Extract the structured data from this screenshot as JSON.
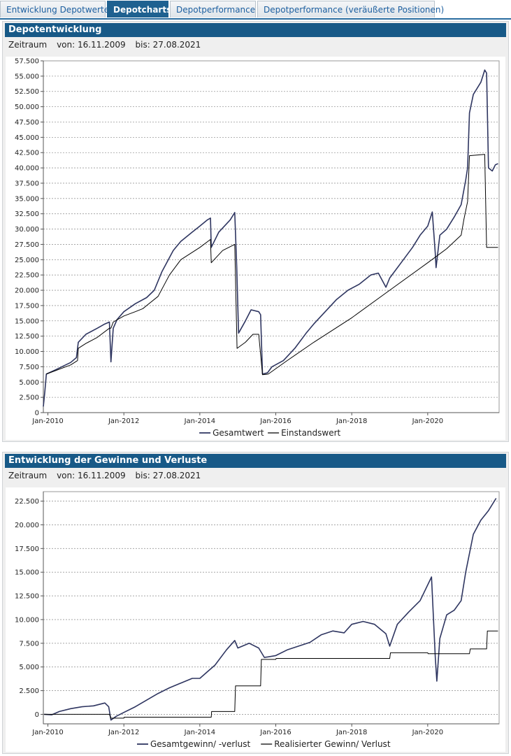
{
  "tabs": [
    {
      "label": "Entwicklung Depotwerte",
      "active": false
    },
    {
      "label": "Depotcharts",
      "active": true
    },
    {
      "label": "Depotperformance",
      "active": false
    },
    {
      "label": "Depotperformance (veräußerte Positionen)",
      "active": false
    }
  ],
  "panels": [
    {
      "title": "Depotentwicklung",
      "range_label": "Zeitraum",
      "from_label": "von:",
      "from": "16.11.2009",
      "to_label": "bis:",
      "to": "27.08.2021"
    },
    {
      "title": "Entwicklung der Gewinne und Verluste",
      "range_label": "Zeitraum",
      "from_label": "von:",
      "from": "16.11.2009",
      "to_label": "bis:",
      "to": "27.08.2021"
    }
  ],
  "colors": {
    "accent": "#175987",
    "series_main": "#2e3560",
    "series_second": "#000000"
  },
  "chart_data": [
    {
      "type": "line",
      "xlim": [
        2009.88,
        2021.88
      ],
      "ylim": [
        0,
        57500
      ],
      "yticks": [
        0,
        2500,
        5000,
        7500,
        10000,
        12500,
        15000,
        17500,
        20000,
        22500,
        25000,
        27500,
        30000,
        32500,
        35000,
        37500,
        40000,
        42500,
        45000,
        47500,
        50000,
        52500,
        55000,
        57500
      ],
      "ytick_labels": [
        "0",
        "2.500",
        "5.000",
        "7.500",
        "10.000",
        "12.500",
        "15.000",
        "17.500",
        "20.000",
        "22.500",
        "25.000",
        "27.500",
        "30.000",
        "32.500",
        "35.000",
        "37.500",
        "40.000",
        "42.500",
        "45.000",
        "47.500",
        "50.000",
        "52.500",
        "55.000",
        "57.500"
      ],
      "xticks": [
        2010,
        2012,
        2014,
        2016,
        2018,
        2020
      ],
      "xtick_labels": [
        "Jan-2010",
        "Jan-2012",
        "Jan-2014",
        "Jan-2016",
        "Jan-2018",
        "Jan-2020"
      ],
      "grid": true,
      "legend_position": "bottom-center",
      "series": [
        {
          "name": "Gesamtwert",
          "color": "#2e3560",
          "width": 1.6,
          "points": [
            [
              2009.88,
              1000
            ],
            [
              2009.92,
              3500
            ],
            [
              2009.96,
              6300
            ],
            [
              2010.2,
              7000
            ],
            [
              2010.6,
              8200
            ],
            [
              2010.75,
              9000
            ],
            [
              2010.8,
              11500
            ],
            [
              2011.0,
              12800
            ],
            [
              2011.3,
              13800
            ],
            [
              2011.5,
              14500
            ],
            [
              2011.62,
              14800
            ],
            [
              2011.66,
              8300
            ],
            [
              2011.72,
              13800
            ],
            [
              2011.82,
              15200
            ],
            [
              2012.0,
              16500
            ],
            [
              2012.3,
              17800
            ],
            [
              2012.6,
              18800
            ],
            [
              2012.8,
              20000
            ],
            [
              2013.0,
              23000
            ],
            [
              2013.3,
              26500
            ],
            [
              2013.5,
              28000
            ],
            [
              2013.8,
              29500
            ],
            [
              2014.0,
              30500
            ],
            [
              2014.2,
              31500
            ],
            [
              2014.28,
              31800
            ],
            [
              2014.3,
              27000
            ],
            [
              2014.5,
              29500
            ],
            [
              2014.8,
              31500
            ],
            [
              2014.92,
              32700
            ],
            [
              2014.97,
              24000
            ],
            [
              2015.02,
              13000
            ],
            [
              2015.2,
              15000
            ],
            [
              2015.35,
              16800
            ],
            [
              2015.55,
              16500
            ],
            [
              2015.6,
              16000
            ],
            [
              2015.65,
              6300
            ],
            [
              2015.78,
              6500
            ],
            [
              2015.9,
              7500
            ],
            [
              2016.2,
              8500
            ],
            [
              2016.5,
              10500
            ],
            [
              2016.8,
              13000
            ],
            [
              2017.0,
              14500
            ],
            [
              2017.3,
              16500
            ],
            [
              2017.6,
              18500
            ],
            [
              2017.9,
              20000
            ],
            [
              2018.2,
              21000
            ],
            [
              2018.5,
              22500
            ],
            [
              2018.7,
              22800
            ],
            [
              2018.9,
              20500
            ],
            [
              2019.0,
              22000
            ],
            [
              2019.3,
              24500
            ],
            [
              2019.6,
              27000
            ],
            [
              2019.8,
              29000
            ],
            [
              2020.0,
              30500
            ],
            [
              2020.12,
              32800
            ],
            [
              2020.2,
              26000
            ],
            [
              2020.22,
              23700
            ],
            [
              2020.32,
              29000
            ],
            [
              2020.5,
              30000
            ],
            [
              2020.7,
              32000
            ],
            [
              2020.88,
              34000
            ],
            [
              2021.0,
              38000
            ],
            [
              2021.05,
              40000
            ],
            [
              2021.1,
              49000
            ],
            [
              2021.2,
              52000
            ],
            [
              2021.4,
              54000
            ],
            [
              2021.5,
              56000
            ],
            [
              2021.55,
              55500
            ],
            [
              2021.6,
              40000
            ],
            [
              2021.7,
              39500
            ],
            [
              2021.78,
              40500
            ],
            [
              2021.85,
              40700
            ]
          ]
        },
        {
          "name": "Einstandswert",
          "color": "#000000",
          "width": 1.0,
          "points": [
            [
              2009.96,
              6300
            ],
            [
              2010.6,
              7800
            ],
            [
              2010.78,
              8500
            ],
            [
              2010.8,
              10500
            ],
            [
              2011.0,
              11300
            ],
            [
              2011.3,
              12300
            ],
            [
              2011.62,
              13800
            ],
            [
              2011.66,
              13800
            ],
            [
              2011.72,
              14800
            ],
            [
              2012.0,
              15800
            ],
            [
              2012.3,
              16500
            ],
            [
              2012.5,
              17000
            ],
            [
              2012.6,
              17500
            ],
            [
              2012.9,
              19000
            ],
            [
              2013.2,
              22500
            ],
            [
              2013.5,
              25000
            ],
            [
              2014.0,
              27000
            ],
            [
              2014.28,
              28300
            ],
            [
              2014.3,
              24500
            ],
            [
              2014.6,
              26500
            ],
            [
              2014.92,
              27500
            ],
            [
              2014.98,
              10500
            ],
            [
              2015.2,
              11500
            ],
            [
              2015.4,
              12800
            ],
            [
              2015.55,
              12800
            ],
            [
              2015.65,
              6200
            ],
            [
              2015.8,
              6300
            ],
            [
              2016.3,
              8500
            ],
            [
              2017.0,
              11500
            ],
            [
              2018.0,
              15500
            ],
            [
              2019.0,
              20000
            ],
            [
              2020.0,
              24500
            ],
            [
              2020.5,
              26800
            ],
            [
              2020.88,
              29000
            ],
            [
              2020.95,
              31500
            ],
            [
              2021.05,
              34500
            ],
            [
              2021.1,
              42000
            ],
            [
              2021.5,
              42200
            ],
            [
              2021.55,
              27000
            ],
            [
              2021.85,
              27000
            ]
          ]
        }
      ]
    },
    {
      "type": "line",
      "xlim": [
        2009.88,
        2021.88
      ],
      "ylim": [
        -1000,
        23500
      ],
      "yticks": [
        0,
        2500,
        5000,
        7500,
        10000,
        12500,
        15000,
        17500,
        20000,
        22500
      ],
      "ytick_labels": [
        "0",
        "2.500",
        "5.000",
        "7.500",
        "10.000",
        "12.500",
        "15.000",
        "17.500",
        "20.000",
        "22.500"
      ],
      "xticks": [
        2010,
        2012,
        2014,
        2016,
        2018,
        2020
      ],
      "xtick_labels": [
        "Jan-2010",
        "Jan-2012",
        "Jan-2014",
        "Jan-2016",
        "Jan-2018",
        "Jan-2020"
      ],
      "grid": true,
      "legend_position": "bottom-center",
      "series": [
        {
          "name": "Gesamtgewinn/ -verlust",
          "color": "#2e3560",
          "width": 1.6,
          "points": [
            [
              2009.9,
              0
            ],
            [
              2010.1,
              -50
            ],
            [
              2010.3,
              300
            ],
            [
              2010.6,
              600
            ],
            [
              2010.9,
              800
            ],
            [
              2011.2,
              900
            ],
            [
              2011.5,
              1200
            ],
            [
              2011.6,
              800
            ],
            [
              2011.66,
              -600
            ],
            [
              2011.8,
              -200
            ],
            [
              2012.0,
              200
            ],
            [
              2012.3,
              800
            ],
            [
              2012.6,
              1500
            ],
            [
              2012.9,
              2200
            ],
            [
              2013.2,
              2800
            ],
            [
              2013.5,
              3300
            ],
            [
              2013.8,
              3800
            ],
            [
              2014.0,
              3800
            ],
            [
              2014.2,
              4500
            ],
            [
              2014.4,
              5200
            ],
            [
              2014.7,
              6800
            ],
            [
              2014.92,
              7800
            ],
            [
              2015.0,
              7000
            ],
            [
              2015.3,
              7500
            ],
            [
              2015.55,
              7000
            ],
            [
              2015.7,
              6000
            ],
            [
              2016.0,
              6200
            ],
            [
              2016.3,
              6800
            ],
            [
              2016.6,
              7200
            ],
            [
              2016.9,
              7600
            ],
            [
              2017.2,
              8400
            ],
            [
              2017.5,
              8800
            ],
            [
              2017.8,
              8600
            ],
            [
              2018.0,
              9500
            ],
            [
              2018.3,
              9800
            ],
            [
              2018.6,
              9500
            ],
            [
              2018.9,
              8500
            ],
            [
              2019.0,
              7200
            ],
            [
              2019.2,
              9500
            ],
            [
              2019.5,
              10800
            ],
            [
              2019.8,
              12000
            ],
            [
              2020.1,
              14500
            ],
            [
              2020.2,
              6000
            ],
            [
              2020.24,
              3500
            ],
            [
              2020.32,
              8000
            ],
            [
              2020.5,
              10500
            ],
            [
              2020.7,
              11000
            ],
            [
              2020.88,
              12000
            ],
            [
              2021.0,
              15000
            ],
            [
              2021.2,
              19000
            ],
            [
              2021.4,
              20500
            ],
            [
              2021.6,
              21500
            ],
            [
              2021.8,
              22800
            ]
          ]
        },
        {
          "name": "Realisierter Gewinn/ Verlust",
          "color": "#000000",
          "width": 1.0,
          "points": [
            [
              2009.9,
              0
            ],
            [
              2011.62,
              0
            ],
            [
              2011.66,
              -400
            ],
            [
              2012.0,
              -400
            ],
            [
              2012.01,
              -300
            ],
            [
              2014.3,
              -300
            ],
            [
              2014.31,
              300
            ],
            [
              2014.92,
              300
            ],
            [
              2014.94,
              3000
            ],
            [
              2015.6,
              3000
            ],
            [
              2015.62,
              5800
            ],
            [
              2016.0,
              5800
            ],
            [
              2016.01,
              5900
            ],
            [
              2019.0,
              5900
            ],
            [
              2019.02,
              6500
            ],
            [
              2020.0,
              6500
            ],
            [
              2020.01,
              6400
            ],
            [
              2021.1,
              6400
            ],
            [
              2021.12,
              6900
            ],
            [
              2021.55,
              6900
            ],
            [
              2021.57,
              8800
            ],
            [
              2021.85,
              8800
            ]
          ]
        }
      ]
    }
  ]
}
